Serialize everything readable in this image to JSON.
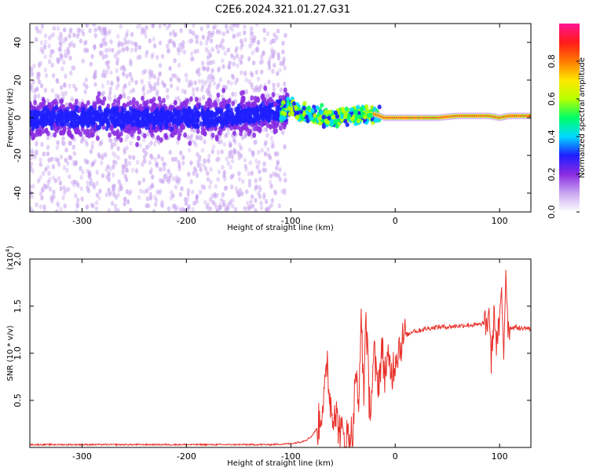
{
  "title": "C2E6.2024.321.01.27.G31",
  "chart_data": [
    {
      "type": "spectrogram",
      "title": "C2E6.2024.321.01.27.G31",
      "xlabel": "Height of straight line (km)",
      "ylabel": "Frequency (Hz)",
      "xlim": [
        -350,
        130
      ],
      "ylim": [
        -50,
        50
      ],
      "xticks": [
        -300,
        -200,
        -100,
        0,
        100
      ],
      "yticks": [
        -40,
        -20,
        0,
        20,
        40
      ],
      "ridge": {
        "x": [
          -350,
          -300,
          -250,
          -200,
          -150,
          -110,
          -100,
          -90,
          -75,
          -60,
          -45,
          -30,
          -20,
          -10,
          0,
          20,
          40,
          60,
          80,
          90,
          100,
          110,
          130
        ],
        "y": [
          0,
          0,
          0,
          0,
          1,
          3,
          6,
          2,
          1,
          0,
          1,
          1,
          2,
          0,
          0,
          0,
          0,
          1,
          1,
          1,
          0,
          1,
          1
        ]
      },
      "colorbar": {
        "label": "Normalized spectral amplitude",
        "range": [
          0,
          1
        ],
        "ticks": [
          "0.0",
          "0.2",
          "0.4",
          "0.6",
          "0.8"
        ],
        "colors": [
          "#ffffff",
          "#c9a6f0",
          "#8a2be2",
          "#1e1eff",
          "#00d9ff",
          "#00ff66",
          "#b7ff00",
          "#ffe600",
          "#ff7a00",
          "#ff1a1a",
          "#ff1493"
        ]
      }
    },
    {
      "type": "line",
      "xlabel": "Height of straight line (km)",
      "ylabel": "SNR (10 * v/v)",
      "scale_label": "(x10",
      "scale_exp": "4",
      "scale_close": ")",
      "xlim": [
        -350,
        130
      ],
      "ylim": [
        0,
        2.0
      ],
      "xticks": [
        -300,
        -200,
        -100,
        0,
        100
      ],
      "yticks": [
        "0.5",
        "1.0",
        "1.5",
        "2.0"
      ],
      "ytick_values": [
        0.5,
        1.0,
        1.5,
        2.0
      ],
      "series": [
        {
          "name": "SNR",
          "color": "#e8302a",
          "x": [
            -350,
            -300,
            -250,
            -200,
            -150,
            -120,
            -100,
            -95,
            -90,
            -85,
            -80,
            -75,
            -72,
            -70,
            -67,
            -65,
            -63,
            -60,
            -58,
            -55,
            -52,
            -50,
            -48,
            -45,
            -42,
            -40,
            -38,
            -35,
            -33,
            -30,
            -28,
            -25,
            -23,
            -20,
            -18,
            -15,
            -13,
            -10,
            -8,
            -5,
            -3,
            0,
            3,
            5,
            8,
            10,
            13,
            15,
            18,
            20,
            25,
            30,
            35,
            40,
            50,
            60,
            70,
            80,
            85,
            88,
            90,
            92,
            95,
            97,
            100,
            102,
            104,
            106,
            108,
            110,
            115,
            120,
            125,
            130
          ],
          "y": [
            0.03,
            0.03,
            0.03,
            0.03,
            0.03,
            0.03,
            0.04,
            0.05,
            0.06,
            0.08,
            0.12,
            0.2,
            0.3,
            0.45,
            0.6,
            0.95,
            0.55,
            0.35,
            0.45,
            0.25,
            0.15,
            0.12,
            0.1,
            0.12,
            0.15,
            0.2,
            0.9,
            0.3,
            1.4,
            0.6,
            1.45,
            0.5,
            0.5,
            1.0,
            0.7,
            0.75,
            1.05,
            0.8,
            0.9,
            0.85,
            0.8,
            0.95,
            1.05,
            1.1,
            1.15,
            1.2,
            1.2,
            1.22,
            1.25,
            1.23,
            1.25,
            1.26,
            1.27,
            1.28,
            1.28,
            1.29,
            1.3,
            1.3,
            1.32,
            1.28,
            1.5,
            0.9,
            1.45,
            1.1,
            1.3,
            1.65,
            1.0,
            1.9,
            1.3,
            1.27,
            1.28,
            1.26,
            1.27,
            1.25
          ]
        }
      ]
    }
  ]
}
